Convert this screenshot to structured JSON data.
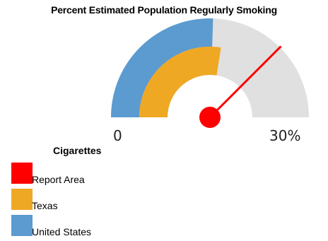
{
  "chart_data": {
    "type": "gauge",
    "title": "Percent Estimated Population Regularly Smoking",
    "min": 0,
    "max": 30,
    "axis_labels": {
      "min": "0",
      "max": "30%"
    },
    "legend_title": "Cigarettes",
    "series": [
      {
        "name": "Report Area",
        "value": 22.5,
        "color": "#ff0000",
        "display": "needle"
      },
      {
        "name": "Texas",
        "value": 16.5,
        "color": "#efa823",
        "display": "inner-band"
      },
      {
        "name": "United States",
        "value": 15.3,
        "color": "#5b9bd0",
        "display": "outer-band"
      }
    ],
    "track_color": "#e0e0e0"
  }
}
